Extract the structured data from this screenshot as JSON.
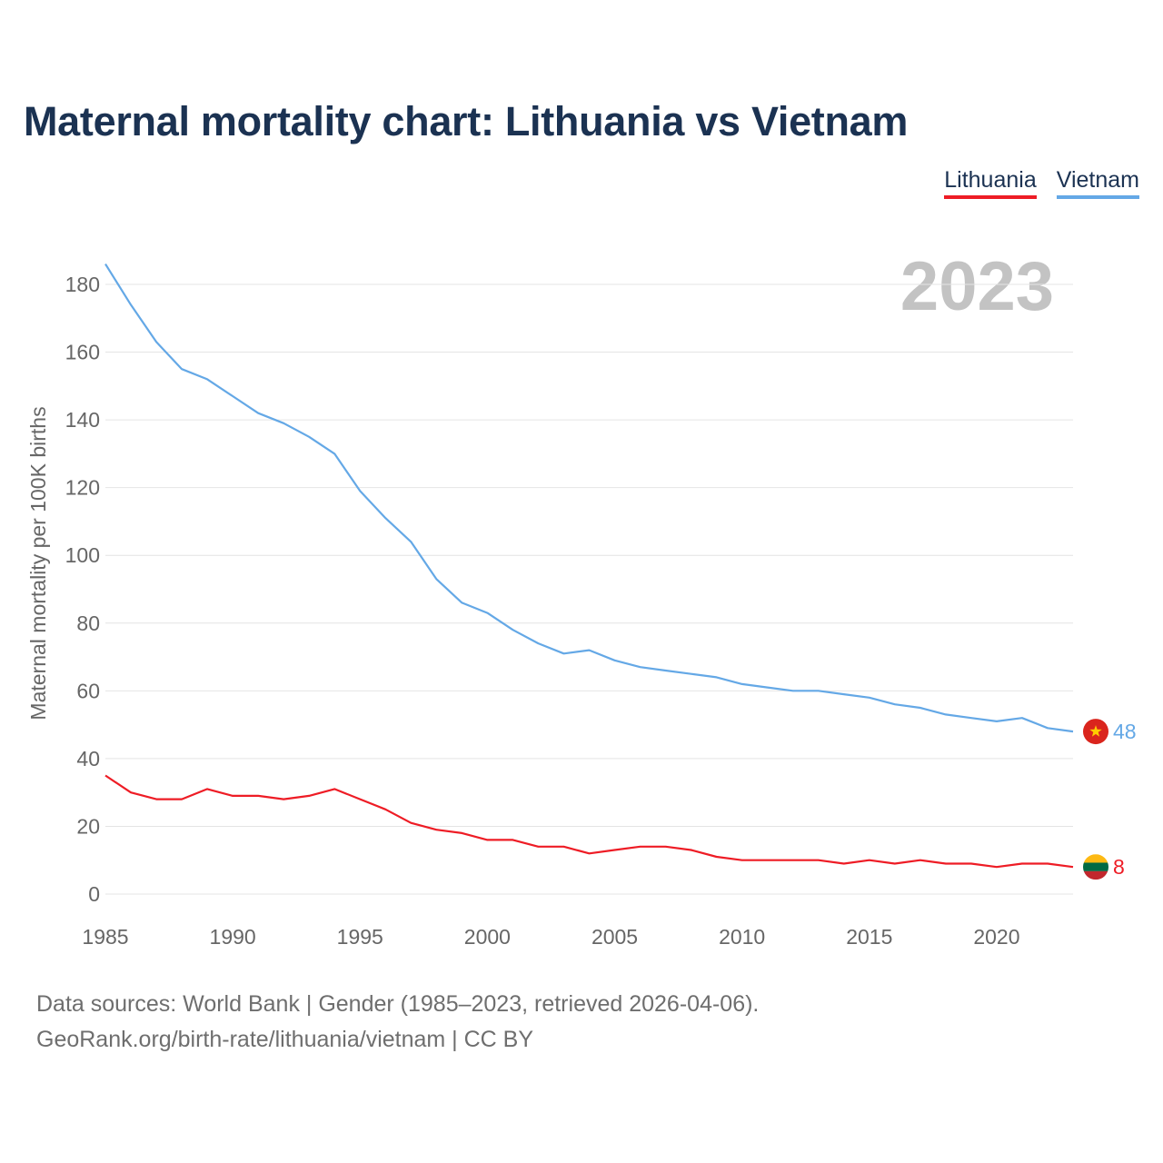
{
  "page": {
    "title": "Maternal mortality chart: Lithuania vs Vietnam",
    "footer": {
      "line1": "Data sources: World Bank | Gender (1985–2023, retrieved 2026-04-06).",
      "line2": "GeoRank.org/birth-rate/lithuania/vietnam | CC BY"
    }
  },
  "chart_data": {
    "type": "line",
    "title": "Maternal mortality chart: Lithuania vs Vietnam",
    "ylabel": "Maternal mortality per 100K births",
    "xlabel": "",
    "year_label": "2023",
    "x_range": [
      1985,
      2023
    ],
    "ylim": [
      0,
      190
    ],
    "x_ticks": [
      1985,
      1990,
      1995,
      2000,
      2005,
      2010,
      2015,
      2020
    ],
    "y_ticks": [
      0,
      20,
      40,
      60,
      80,
      100,
      120,
      140,
      160,
      180
    ],
    "grid": true,
    "legend_position": "top-right",
    "x": [
      1985,
      1986,
      1987,
      1988,
      1989,
      1990,
      1991,
      1992,
      1993,
      1994,
      1995,
      1996,
      1997,
      1998,
      1999,
      2000,
      2001,
      2002,
      2003,
      2004,
      2005,
      2006,
      2007,
      2008,
      2009,
      2010,
      2011,
      2012,
      2013,
      2014,
      2015,
      2016,
      2017,
      2018,
      2019,
      2020,
      2021,
      2022,
      2023
    ],
    "series": [
      {
        "name": "Lithuania",
        "color": "#ee1c25",
        "end_label": "8",
        "flag": "lithuania-flag",
        "values": [
          35,
          30,
          28,
          28,
          31,
          29,
          29,
          28,
          29,
          31,
          28,
          25,
          21,
          19,
          18,
          16,
          16,
          14,
          14,
          12,
          13,
          14,
          14,
          13,
          11,
          10,
          10,
          10,
          10,
          9,
          10,
          9,
          10,
          9,
          9,
          8,
          9,
          9,
          8
        ]
      },
      {
        "name": "Vietnam",
        "color": "#64a8e6",
        "end_label": "48",
        "flag": "vietnam-flag",
        "values": [
          186,
          174,
          163,
          155,
          152,
          147,
          142,
          139,
          135,
          130,
          119,
          111,
          104,
          93,
          86,
          83,
          78,
          74,
          71,
          72,
          69,
          67,
          66,
          65,
          64,
          62,
          61,
          60,
          60,
          59,
          58,
          56,
          55,
          53,
          52,
          51,
          52,
          49,
          48
        ]
      }
    ]
  }
}
